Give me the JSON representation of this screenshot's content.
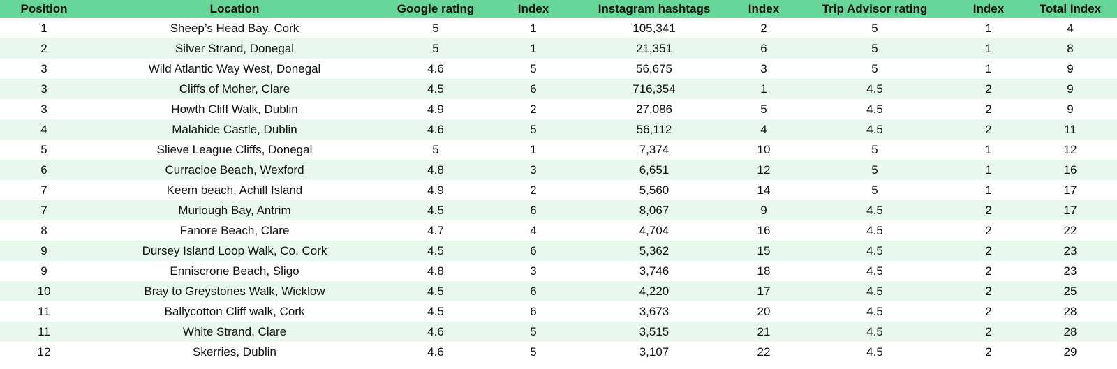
{
  "table": {
    "headers": [
      "Position",
      "Location",
      "Google rating",
      "Index",
      "Instagram hashtags",
      "Index",
      "Trip Advisor rating",
      "Index",
      "Total Index"
    ],
    "rows": [
      [
        "1",
        "Sheep’s Head Bay, Cork",
        "5",
        "1",
        "105,341",
        "2",
        "5",
        "1",
        "4"
      ],
      [
        "2",
        "Silver Strand, Donegal",
        "5",
        "1",
        "21,351",
        "6",
        "5",
        "1",
        "8"
      ],
      [
        "3",
        "Wild Atlantic Way West, Donegal",
        "4.6",
        "5",
        "56,675",
        "3",
        "5",
        "1",
        "9"
      ],
      [
        "3",
        "Cliffs of Moher, Clare",
        "4.5",
        "6",
        "716,354",
        "1",
        "4.5",
        "2",
        "9"
      ],
      [
        "3",
        "Howth Cliff Walk, Dublin",
        "4.9",
        "2",
        "27,086",
        "5",
        "4.5",
        "2",
        "9"
      ],
      [
        "4",
        "Malahide Castle, Dublin",
        "4.6",
        "5",
        "56,112",
        "4",
        "4.5",
        "2",
        "11"
      ],
      [
        "5",
        "Slieve League Cliffs, Donegal",
        "5",
        "1",
        "7,374",
        "10",
        "5",
        "1",
        "12"
      ],
      [
        "6",
        "Curracloe Beach, Wexford",
        "4.8",
        "3",
        "6,651",
        "12",
        "5",
        "1",
        "16"
      ],
      [
        "7",
        "Keem beach, Achill Island",
        "4.9",
        "2",
        "5,560",
        "14",
        "5",
        "1",
        "17"
      ],
      [
        "7",
        "Murlough Bay, Antrim",
        "4.5",
        "6",
        "8,067",
        "9",
        "4.5",
        "2",
        "17"
      ],
      [
        "8",
        "Fanore Beach, Clare",
        "4.7",
        "4",
        "4,704",
        "16",
        "4.5",
        "2",
        "22"
      ],
      [
        "9",
        "Dursey Island Loop Walk, Co. Cork",
        "4.5",
        "6",
        "5,362",
        "15",
        "4.5",
        "2",
        "23"
      ],
      [
        "9",
        "Enniscrone Beach, Sligo",
        "4.8",
        "3",
        "3,746",
        "18",
        "4.5",
        "2",
        "23"
      ],
      [
        "10",
        "Bray to Greystones Walk, Wicklow",
        "4.5",
        "6",
        "4,220",
        "17",
        "4.5",
        "2",
        "25"
      ],
      [
        "11",
        "Ballycotton Cliff walk, Cork",
        "4.5",
        "6",
        "3,673",
        "20",
        "4.5",
        "2",
        "28"
      ],
      [
        "11",
        "White Strand, Clare",
        "4.6",
        "5",
        "3,515",
        "21",
        "4.5",
        "2",
        "28"
      ],
      [
        "12",
        "Skerries, Dublin",
        "4.6",
        "5",
        "3,107",
        "22",
        "4.5",
        "2",
        "29"
      ]
    ]
  },
  "colors": {
    "header_bg": "#66d699",
    "row_alt_bg": "#e8f8ef",
    "row_bg": "#ffffff",
    "text": "#111111"
  }
}
